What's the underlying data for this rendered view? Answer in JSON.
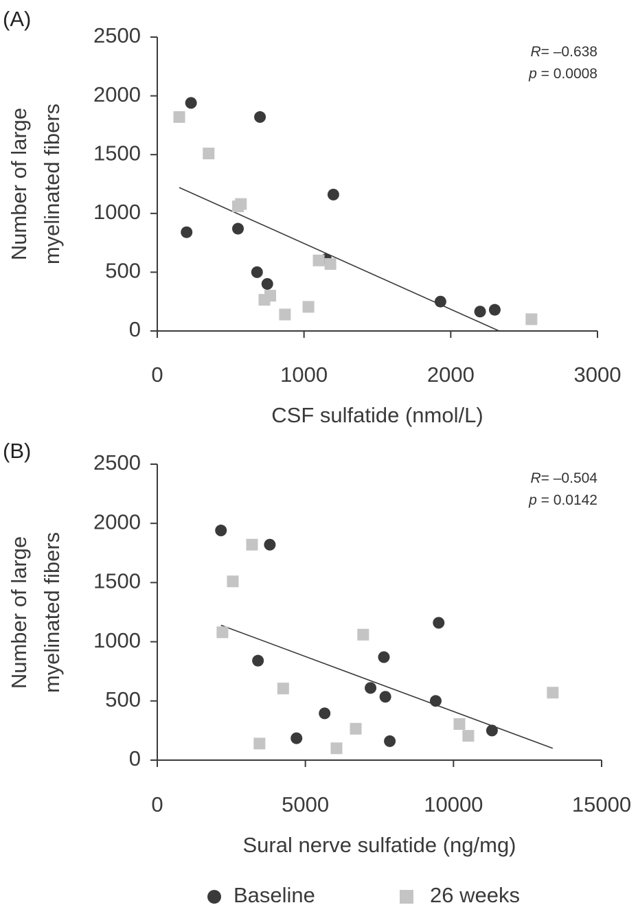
{
  "colors": {
    "baseline": "#3a3a3a",
    "week26": "#c4c4c4",
    "axis": "#3a3a3a",
    "fit": "#3a3a3a"
  },
  "legend": {
    "placement": "bottom",
    "items": [
      {
        "label": "Baseline",
        "marker": "circle"
      },
      {
        "label": "26 weeks",
        "marker": "square"
      }
    ]
  },
  "chart_data": [
    {
      "type": "scatter",
      "panel_label": "(A)",
      "xlabel": "CSF sulfatide (nmol/L)",
      "ylabel_lines": [
        "Number of large",
        "myelinated fibers"
      ],
      "xlim": [
        0,
        3000
      ],
      "ylim": [
        0,
        2500
      ],
      "xticks": [
        "0",
        "1000",
        "2000",
        "3000"
      ],
      "yticks": [
        "0",
        "500",
        "1000",
        "1500",
        "2000",
        "2500"
      ],
      "stats": {
        "r_symbol": "R",
        "r_value": "= –0.638",
        "p_symbol": "p",
        "p_value": "= 0.0008"
      },
      "fit_line": {
        "x": [
          150,
          2330
        ],
        "y": [
          1220,
          0
        ]
      },
      "series": [
        {
          "name": "Baseline",
          "marker": "circle",
          "points": [
            [
              230,
              1940
            ],
            [
              700,
              1820
            ],
            [
              1200,
              1160
            ],
            [
              200,
              840
            ],
            [
              550,
              870
            ],
            [
              1150,
              610
            ],
            [
              680,
              500
            ],
            [
              750,
              400
            ],
            [
              1930,
              250
            ],
            [
              2300,
              180
            ],
            [
              2200,
              165
            ]
          ]
        },
        {
          "name": "26 weeks",
          "marker": "square",
          "points": [
            [
              150,
              1820
            ],
            [
              350,
              1510
            ],
            [
              550,
              1060
            ],
            [
              570,
              1080
            ],
            [
              1100,
              600
            ],
            [
              1180,
              570
            ],
            [
              770,
              300
            ],
            [
              730,
              265
            ],
            [
              1030,
              205
            ],
            [
              870,
              140
            ],
            [
              2550,
              100
            ]
          ]
        }
      ]
    },
    {
      "type": "scatter",
      "panel_label": "(B)",
      "xlabel": "Sural nerve sulfatide (ng/mg)",
      "ylabel_lines": [
        "Number of large",
        "myelinated fibers"
      ],
      "xlim": [
        0,
        15000
      ],
      "ylim": [
        0,
        2500
      ],
      "xticks": [
        "0",
        "5000",
        "10000",
        "15000"
      ],
      "yticks": [
        "0",
        "500",
        "1000",
        "1500",
        "2000",
        "2500"
      ],
      "stats": {
        "r_symbol": "R",
        "r_value": "= –0.504",
        "p_symbol": "p",
        "p_value": "= 0.0142"
      },
      "fit_line": {
        "x": [
          2150,
          13350
        ],
        "y": [
          1140,
          100
        ]
      },
      "series": [
        {
          "name": "Baseline",
          "marker": "circle",
          "points": [
            [
              2150,
              1940
            ],
            [
              3800,
              1820
            ],
            [
              9500,
              1160
            ],
            [
              3400,
              840
            ],
            [
              7650,
              870
            ],
            [
              7200,
              610
            ],
            [
              7700,
              535
            ],
            [
              9400,
              500
            ],
            [
              5650,
              395
            ],
            [
              4700,
              185
            ],
            [
              7850,
              160
            ],
            [
              11300,
              250
            ]
          ]
        },
        {
          "name": "26 weeks",
          "marker": "square",
          "points": [
            [
              3200,
              1820
            ],
            [
              2550,
              1510
            ],
            [
              2200,
              1080
            ],
            [
              6950,
              1060
            ],
            [
              4250,
              605
            ],
            [
              13350,
              570
            ],
            [
              6700,
              265
            ],
            [
              10200,
              305
            ],
            [
              10500,
              205
            ],
            [
              3450,
              140
            ],
            [
              6050,
              100
            ]
          ]
        }
      ]
    }
  ]
}
